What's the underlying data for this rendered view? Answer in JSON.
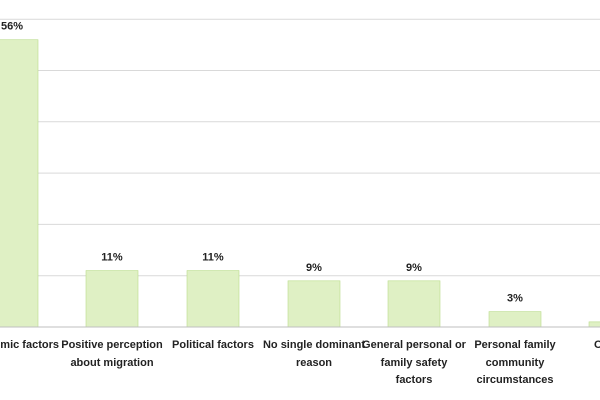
{
  "chart_data": {
    "type": "bar",
    "categories": [
      "mic factors",
      "Positive perception about migration",
      "Political factors",
      "No single dominant reason",
      "General personal or family safety factors",
      "Personal family community circumstances",
      "O"
    ],
    "values": [
      56,
      11,
      11,
      9,
      9,
      3,
      1
    ],
    "data_labels": [
      "56%",
      "11%",
      "11%",
      "9%",
      "9%",
      "3%",
      ""
    ],
    "ylim": [
      0,
      60
    ],
    "grid": true,
    "colors": {
      "bar_fill": "#dff0c4",
      "bar_stroke": "#b9db8a",
      "grid": "#d9d9d9",
      "axis": "#bfbfbf",
      "text": "#222222"
    }
  }
}
